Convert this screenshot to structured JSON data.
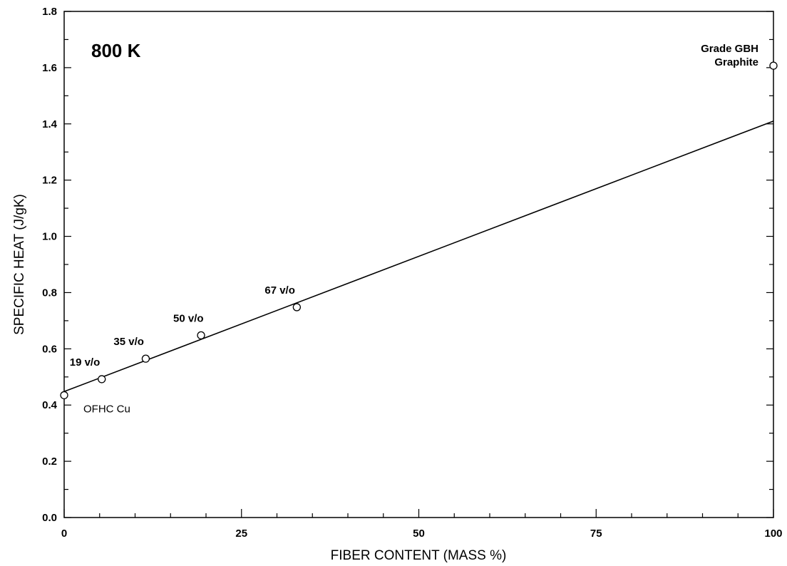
{
  "chart_data": {
    "type": "scatter",
    "title": "800 K",
    "xlabel": "FIBER CONTENT (MASS %)",
    "ylabel": "SPECIFIC HEAT (J/gK)",
    "xlim": [
      0,
      100
    ],
    "ylim": [
      0.0,
      1.8
    ],
    "x_ticks": [
      "0",
      "25",
      "50",
      "75",
      "100"
    ],
    "y_ticks": [
      "0.0",
      "0.2",
      "0.4",
      "0.6",
      "0.8",
      "1.0",
      "1.2",
      "1.4",
      "1.6",
      "1.8"
    ],
    "grid": false,
    "legend": "none",
    "series": [
      {
        "marker": "open-circle",
        "points": [
          {
            "x": 0,
            "y": 0.435,
            "label": "OFHC Cu"
          },
          {
            "x": 5.3,
            "y": 0.492,
            "label": "19 v/o"
          },
          {
            "x": 11.5,
            "y": 0.565,
            "label": "35 v/o"
          },
          {
            "x": 19.3,
            "y": 0.648,
            "label": "50 v/o"
          },
          {
            "x": 32.8,
            "y": 0.748,
            "label": "67 v/o"
          },
          {
            "x": 100,
            "y": 1.607,
            "label": "Grade GBH Graphite"
          }
        ]
      }
    ],
    "fit_line": {
      "x": [
        0,
        100
      ],
      "y": [
        0.448,
        1.41
      ]
    },
    "colors": {
      "line": "#000000",
      "background": "#ffffff"
    }
  }
}
